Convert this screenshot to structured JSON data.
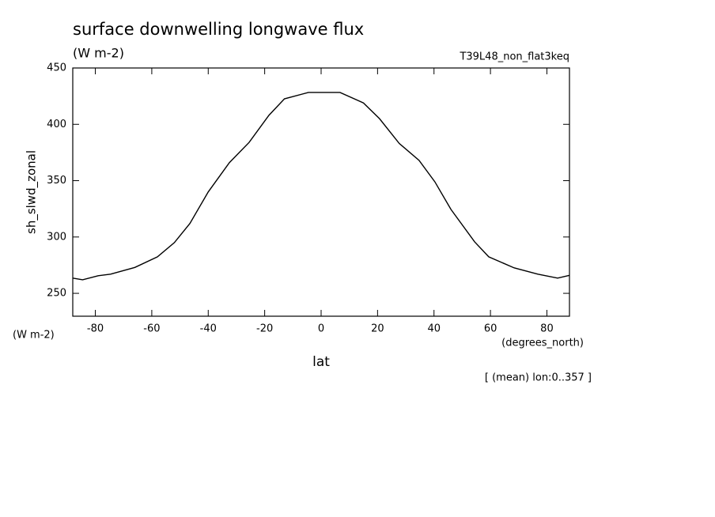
{
  "chart_data": {
    "type": "line",
    "title": "surface downwelling longwave flux",
    "units": "(W m-2)",
    "dataset": "T39L48_non_flat3keq",
    "y_label": "sh_slwd_zonal",
    "y_units": "(W m-2)",
    "x_units": "(degrees_north)",
    "x_label": "lat",
    "note": "[ (mean) lon:0..357 ]",
    "x": [
      -88,
      -84.5,
      -79,
      -74.6,
      -66,
      -58,
      -52,
      -46.5,
      -40,
      -32.5,
      -25.5,
      -18.5,
      -13,
      -4.5,
      6.7,
      15,
      20.7,
      27.7,
      34.7,
      40.3,
      46,
      54.4,
      59.4,
      68.4,
      76.8,
      83.8,
      88
    ],
    "series": [
      {
        "name": "sh_slwd_zonal",
        "color": "#000000",
        "values": [
          263.5,
          262,
          265.6,
          267,
          273,
          282.4,
          295,
          312,
          340,
          366,
          384,
          408,
          422.6,
          428.3,
          428.3,
          419,
          405,
          383,
          368,
          349,
          324.5,
          295.7,
          282.4,
          272.6,
          267,
          263.5,
          266
        ]
      }
    ],
    "xlim": [
      -88,
      88
    ],
    "xticks": [
      -80,
      -60,
      -40,
      -20,
      0,
      20,
      40,
      60,
      80
    ],
    "ylim": [
      229.7,
      450
    ],
    "yticks": [
      250,
      300,
      350,
      400,
      450
    ]
  }
}
